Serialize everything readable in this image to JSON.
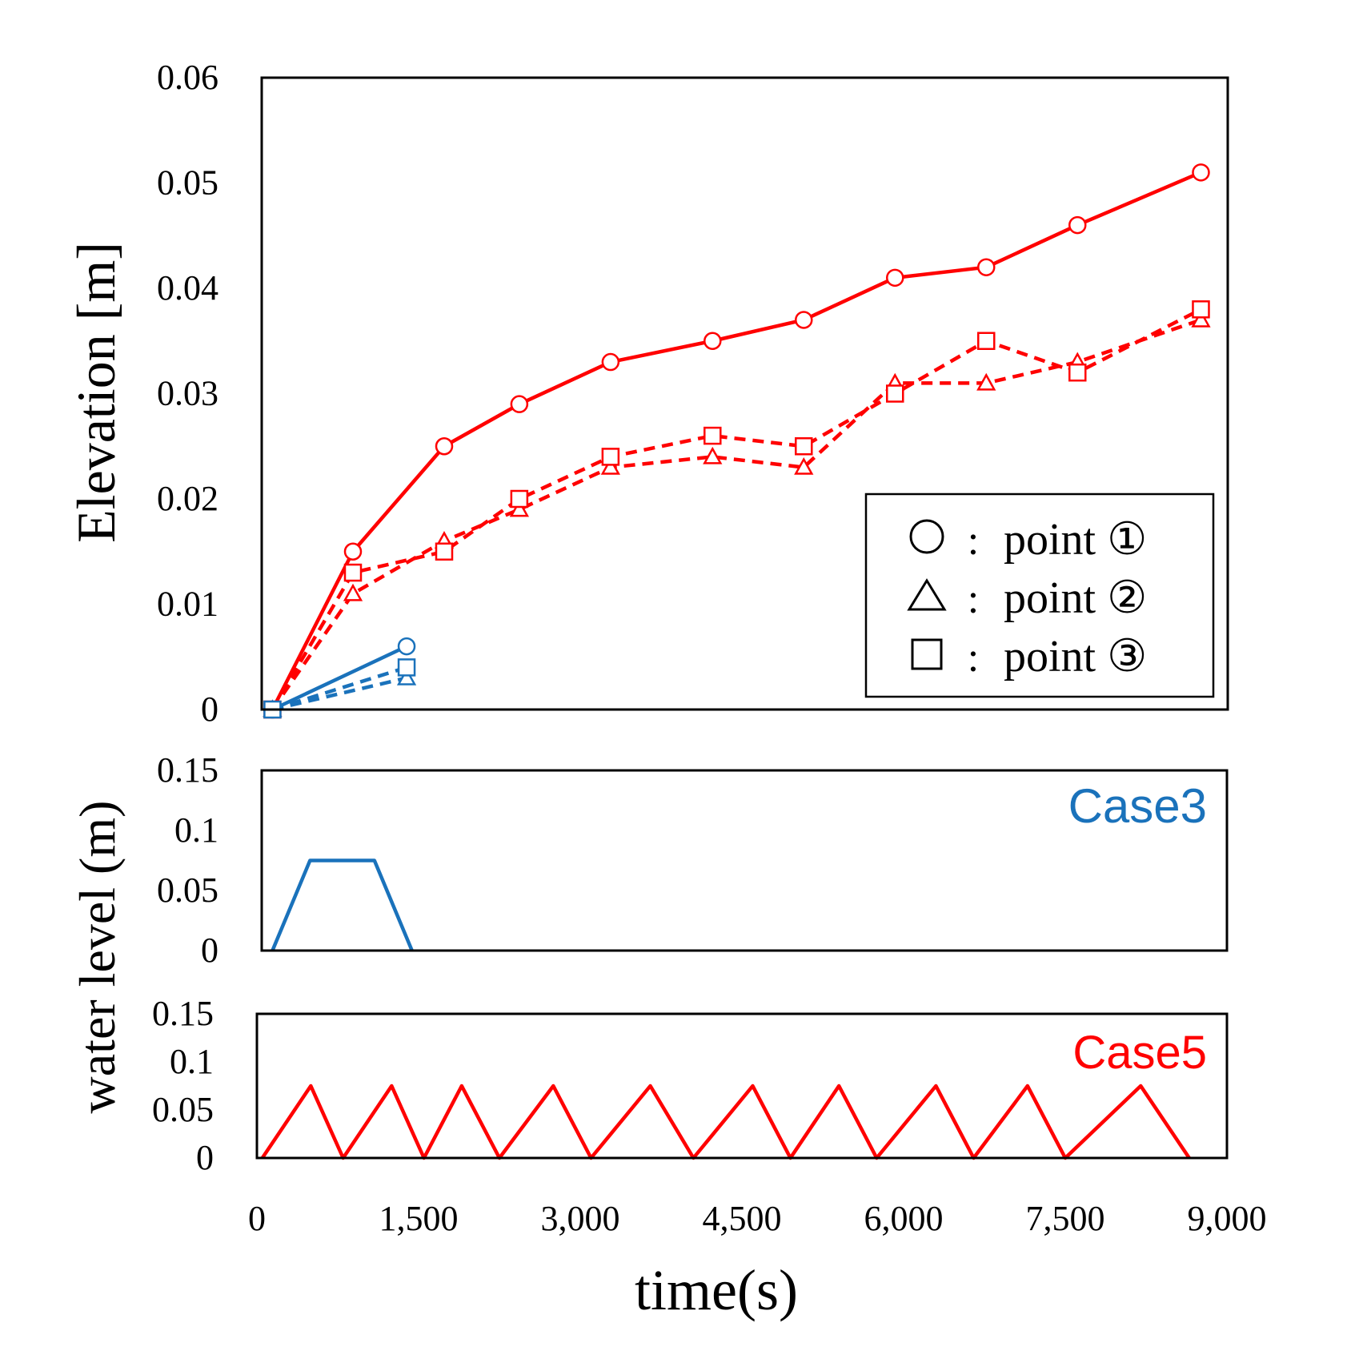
{
  "chart_data": [
    {
      "type": "line",
      "name": "elevation-chart",
      "ylabel": "Elevation [m]",
      "ylim": [
        0,
        0.06
      ],
      "yticks": [
        {
          "value": 0,
          "label": "0"
        },
        {
          "value": 0.01,
          "label": "0.01"
        },
        {
          "value": 0.02,
          "label": "0.02"
        },
        {
          "value": 0.03,
          "label": "0.03"
        },
        {
          "value": 0.04,
          "label": "0.04"
        },
        {
          "value": 0.05,
          "label": "0.05"
        },
        {
          "value": 0.06,
          "label": "0.06"
        }
      ],
      "xlim": [
        0,
        9000
      ],
      "legend": {
        "placement": "lower-right",
        "separator": ":",
        "entries": [
          {
            "marker": "circle",
            "label": "point ①"
          },
          {
            "marker": "triangle",
            "label": "point ②"
          },
          {
            "marker": "square",
            "label": "point ③"
          }
        ]
      },
      "series": [
        {
          "name": "Case5 point ①",
          "case": "Case5",
          "marker": "circle",
          "style": "solid",
          "color": "#ff0000",
          "x": [
            100,
            850,
            1700,
            2400,
            3250,
            4200,
            5050,
            5900,
            6750,
            7600,
            8750
          ],
          "y": [
            0,
            0.015,
            0.025,
            0.029,
            0.033,
            0.035,
            0.037,
            0.041,
            0.042,
            0.046,
            0.051
          ]
        },
        {
          "name": "Case5 point ②",
          "case": "Case5",
          "marker": "triangle",
          "style": "dashed",
          "color": "#ff0000",
          "x": [
            100,
            850,
            1700,
            2400,
            3250,
            4200,
            5050,
            5900,
            6750,
            7600,
            8750
          ],
          "y": [
            0,
            0.011,
            0.016,
            0.019,
            0.023,
            0.024,
            0.023,
            0.031,
            0.031,
            0.033,
            0.037
          ]
        },
        {
          "name": "Case5 point ③",
          "case": "Case5",
          "marker": "square",
          "style": "dashed",
          "color": "#ff0000",
          "x": [
            100,
            850,
            1700,
            2400,
            3250,
            4200,
            5050,
            5900,
            6750,
            7600,
            8750
          ],
          "y": [
            0,
            0.013,
            0.015,
            0.02,
            0.024,
            0.026,
            0.025,
            0.03,
            0.035,
            0.032,
            0.038
          ]
        },
        {
          "name": "Case3 point ①",
          "case": "Case3",
          "marker": "circle",
          "style": "solid",
          "color": "#1a72bb",
          "x": [
            100,
            1350
          ],
          "y": [
            0,
            0.006
          ]
        },
        {
          "name": "Case3 point ②",
          "case": "Case3",
          "marker": "triangle",
          "style": "dashed",
          "color": "#1a72bb",
          "x": [
            100,
            1350
          ],
          "y": [
            0,
            0.003
          ]
        },
        {
          "name": "Case3 point ③",
          "case": "Case3",
          "marker": "square",
          "style": "dashed",
          "color": "#1a72bb",
          "x": [
            100,
            1350
          ],
          "y": [
            0,
            0.004
          ]
        }
      ]
    },
    {
      "type": "line",
      "name": "case3-water-level",
      "annotation": "Case3",
      "ylim": [
        0,
        0.15
      ],
      "yticks": [
        {
          "value": 0,
          "label": "0"
        },
        {
          "value": 0.05,
          "label": "0.05"
        },
        {
          "value": 0.1,
          "label": "0.1"
        },
        {
          "value": 0.15,
          "label": "0.15"
        }
      ],
      "xlim": [
        0,
        9000
      ],
      "series": [
        {
          "name": "Case3",
          "color": "#1a72bb",
          "x": [
            100,
            450,
            1050,
            1400
          ],
          "y": [
            0,
            0.075,
            0.075,
            0
          ]
        }
      ]
    },
    {
      "type": "line",
      "name": "case5-water-level",
      "annotation": "Case5",
      "ylim": [
        0,
        0.15
      ],
      "yticks": [
        {
          "value": 0,
          "label": "0"
        },
        {
          "value": 0.05,
          "label": "0.05"
        },
        {
          "value": 0.1,
          "label": "0.1"
        },
        {
          "value": 0.15,
          "label": "0.15"
        }
      ],
      "xlabel": "time(s)",
      "xlim": [
        0,
        9000
      ],
      "xticks": [
        {
          "value": 0,
          "label": "0"
        },
        {
          "value": 1500,
          "label": "1,500"
        },
        {
          "value": 3000,
          "label": "3,000"
        },
        {
          "value": 4500,
          "label": "4,500"
        },
        {
          "value": 6000,
          "label": "6,000"
        },
        {
          "value": 7500,
          "label": "7,500"
        },
        {
          "value": 9000,
          "label": "9,000"
        }
      ],
      "series": [
        {
          "name": "Case5",
          "color": "#ff0000",
          "x": [
            50,
            500,
            800,
            1250,
            1550,
            1900,
            2250,
            2750,
            3100,
            3650,
            4050,
            4600,
            4950,
            5400,
            5750,
            6300,
            6650,
            7150,
            7500,
            8200,
            8650
          ],
          "y": [
            0,
            0.075,
            0,
            0.075,
            0,
            0.075,
            0,
            0.075,
            0,
            0.075,
            0,
            0.075,
            0,
            0.075,
            0,
            0.075,
            0,
            0.075,
            0,
            0.075,
            0
          ]
        }
      ]
    }
  ],
  "shared_ylabel": "water level (m)",
  "colors": {
    "case3": "#1a72bb",
    "case5": "#ff0000",
    "axis": "#000000"
  }
}
